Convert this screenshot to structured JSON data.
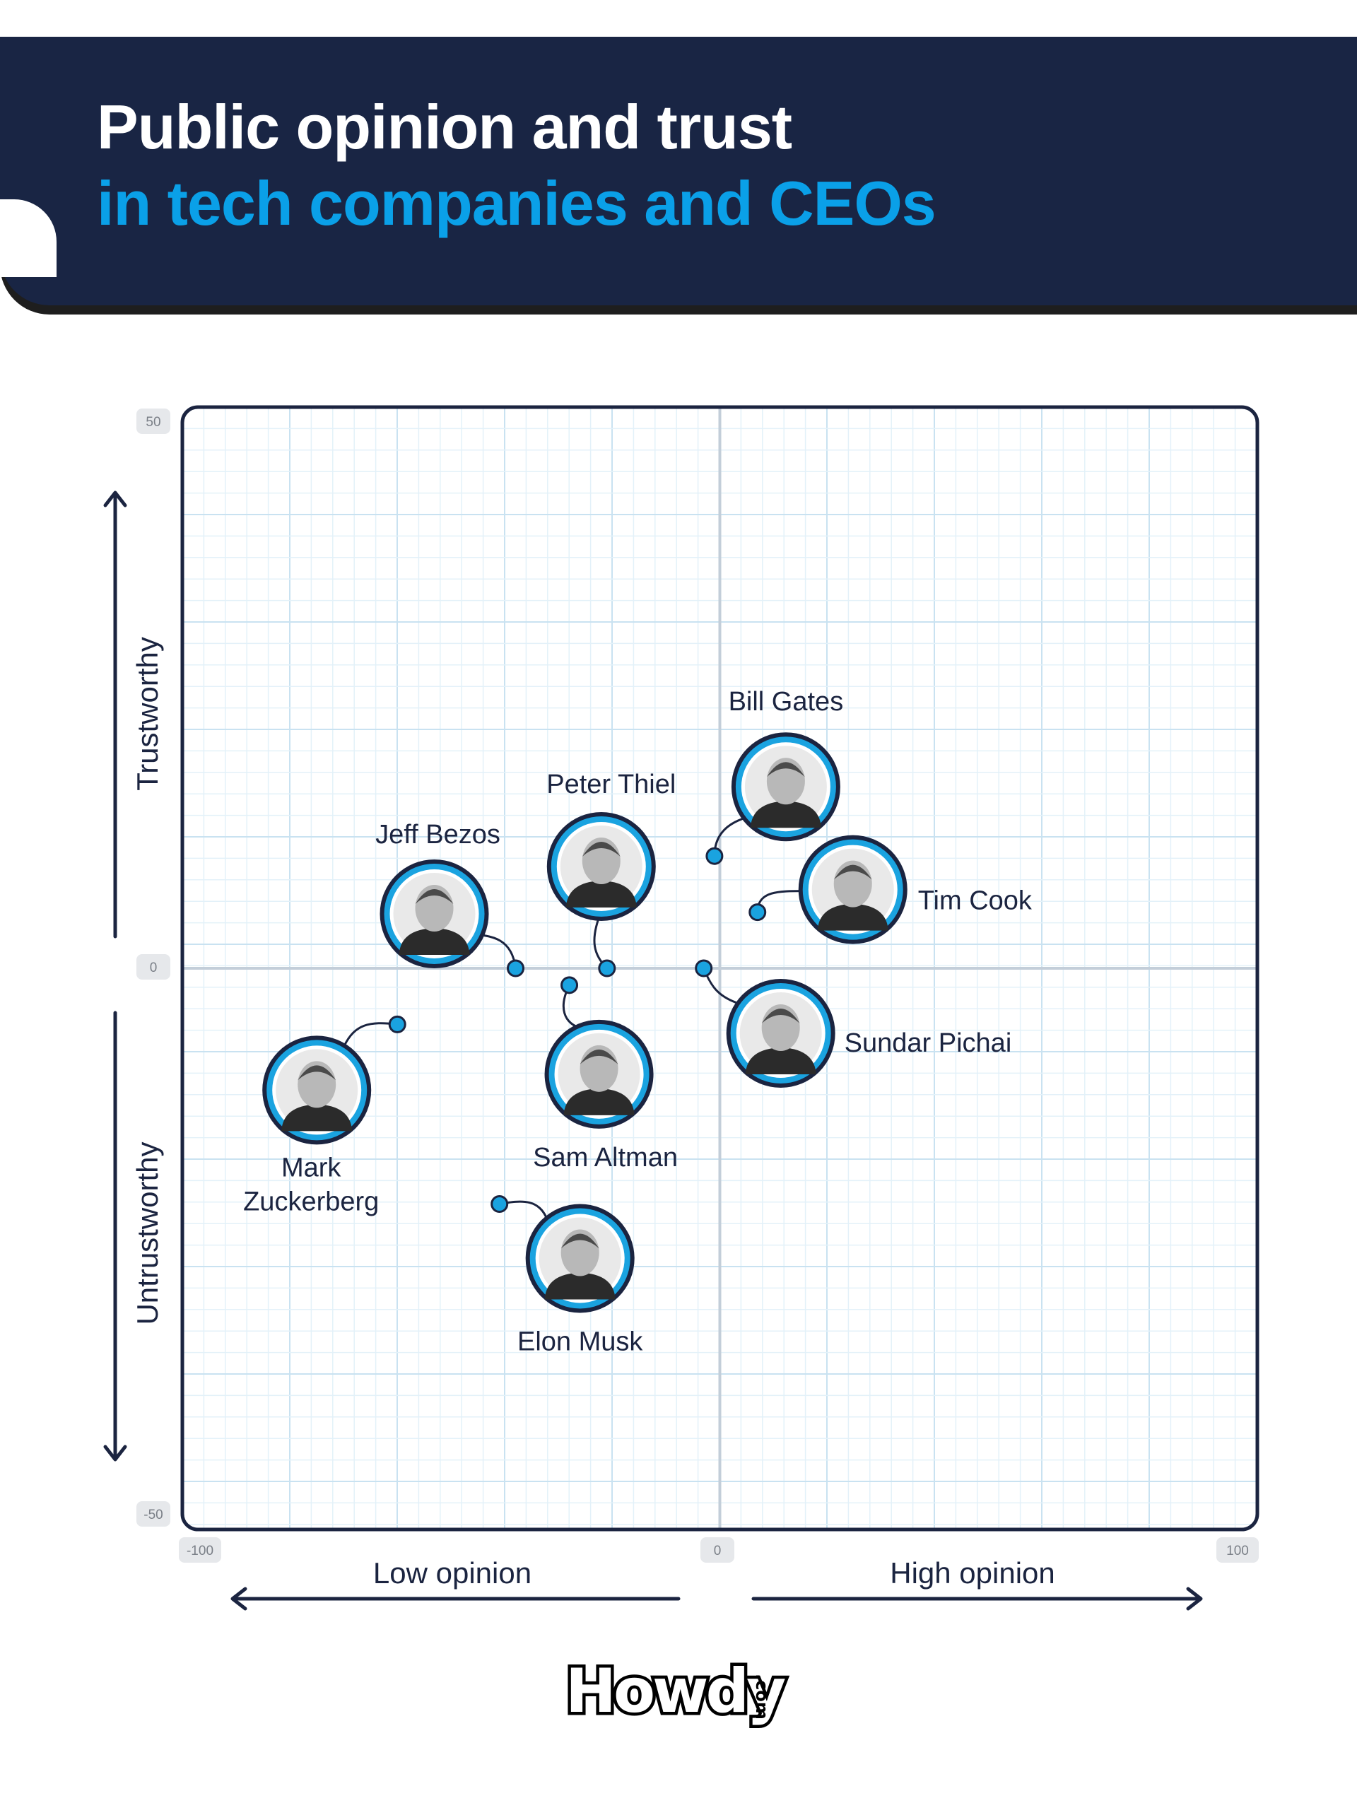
{
  "header": {
    "title_line_1": "Public opinion and trust",
    "title_line_2": "in tech companies and CEOs"
  },
  "colors": {
    "header_bg": "#192544",
    "title_white": "#ffffff",
    "title_accent": "#0aa0e8",
    "marker": "#1aa3e0",
    "frame": "#1b2440",
    "grid": "#d8ecf7"
  },
  "logo": {
    "name": "Howdy",
    "suffix": ".com"
  },
  "chart_data": {
    "type": "scatter",
    "x_axis": {
      "range": [
        -100,
        100
      ],
      "tick_labels": [
        "-100",
        "0",
        "100"
      ],
      "low_label": "Low opinion",
      "high_label": "High opinion"
    },
    "y_axis": {
      "range": [
        -50,
        50
      ],
      "tick_labels": [
        "50",
        "0",
        "-50"
      ],
      "high_label": "Trustworthy",
      "low_label": "Untrustworthy"
    },
    "grid": true,
    "points": [
      {
        "name": "Bill Gates",
        "x": -1,
        "y": 10,
        "icon": "bill-gates-portrait"
      },
      {
        "name": "Tim Cook",
        "x": 7,
        "y": 5,
        "icon": "tim-cook-portrait"
      },
      {
        "name": "Peter Thiel",
        "x": -21,
        "y": 0,
        "icon": "peter-thiel-portrait"
      },
      {
        "name": "Jeff Bezos",
        "x": -38,
        "y": 0,
        "icon": "jeff-bezos-portrait"
      },
      {
        "name": "Sam Altman",
        "x": -28,
        "y": -1.5,
        "icon": "sam-altman-portrait"
      },
      {
        "name": "Sundar Pichai",
        "x": -3,
        "y": 0,
        "icon": "sundar-pichai-portrait"
      },
      {
        "name": "Mark Zuckerberg",
        "x": -60,
        "y": -5,
        "icon": "mark-zuckerberg-portrait"
      },
      {
        "name": "Elon Musk",
        "x": -41,
        "y": -21,
        "icon": "elon-musk-portrait"
      }
    ]
  }
}
